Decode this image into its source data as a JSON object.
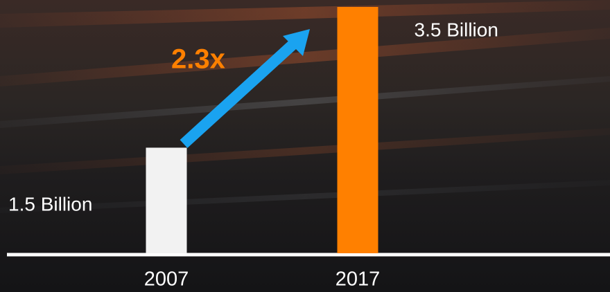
{
  "chart_data": {
    "type": "bar",
    "categories": [
      "2007",
      "2017"
    ],
    "values": [
      1.5,
      3.5
    ],
    "value_labels": [
      "1.5 Billion",
      "3.5 Billion"
    ],
    "colors": [
      "#f2f2f2",
      "#ff8000"
    ],
    "annotation": "2.3x",
    "annotation_color": "#ff8000",
    "arrow_color": "#1aa3f0"
  }
}
